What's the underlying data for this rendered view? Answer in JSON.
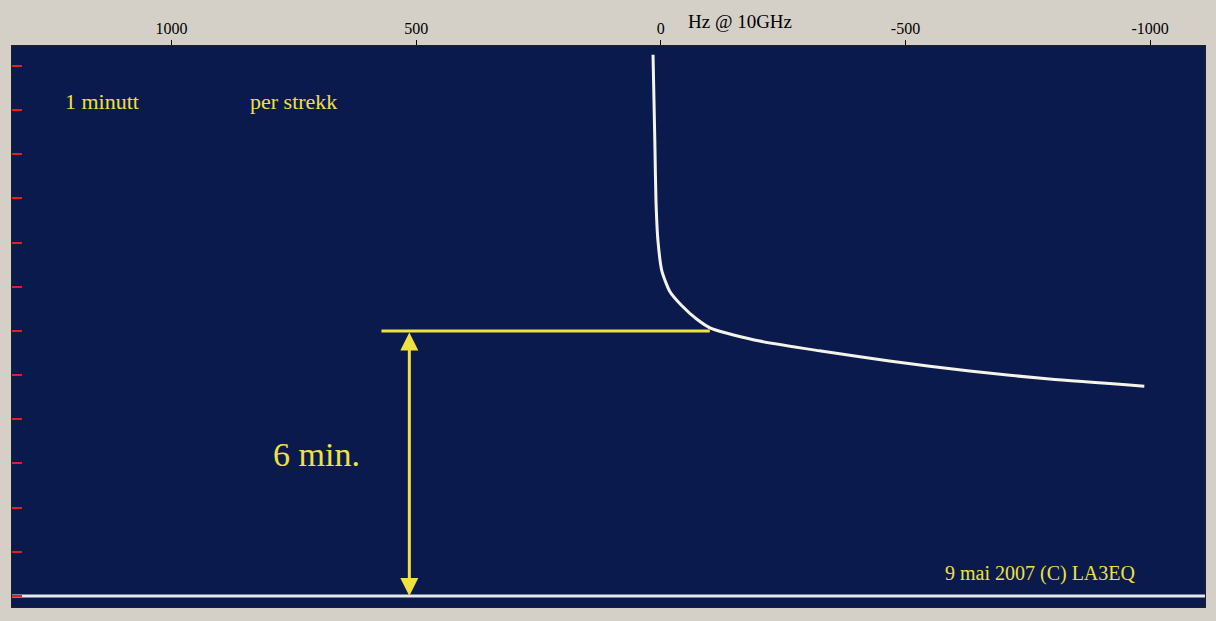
{
  "chart_data": {
    "type": "line",
    "x_label": "Hz @ 10GHz",
    "xlim": [
      1326,
      -1112
    ],
    "xticks": [
      1000,
      500,
      0,
      -500,
      -1000
    ],
    "ylim": [
      -0.25,
      12.45
    ],
    "yticks": [
      0,
      1,
      2,
      3,
      4,
      5,
      6,
      7,
      8,
      9,
      10,
      11,
      12
    ],
    "tick_labels": "x",
    "grid": false,
    "series": [
      {
        "color": "#f4f4e8",
        "x": [
          16,
          14,
          12,
          10,
          6,
          -2,
          -18,
          -43,
          -73,
          -104,
          -202,
          -324,
          -467,
          -631,
          -794,
          -988
        ],
        "values": [
          12.25,
          11.2,
          10.1,
          8.95,
          8.05,
          7.36,
          6.9,
          6.57,
          6.27,
          6.05,
          5.77,
          5.55,
          5.32,
          5.09,
          4.91,
          4.75
        ]
      },
      {
        "color": "#e8e8e8",
        "x": [
          1326,
          -1112
        ],
        "values": [
          0,
          0
        ]
      }
    ],
    "annotations": [
      {
        "text": "1 minutt",
        "x": 1143,
        "y": 11.2
      },
      {
        "text": "per strekk",
        "x": 751,
        "y": 11.2
      },
      {
        "text": "6 min.",
        "x": 704,
        "y": 3.2
      },
      {
        "text": "9 mai 2007 (C) LA3EQ",
        "x": -776,
        "y": 0.5
      }
    ],
    "bracket": {
      "x": 514,
      "y": [
        0,
        6
      ],
      "line_x": [
        571,
        -100
      ],
      "color": "#f0e040"
    }
  }
}
